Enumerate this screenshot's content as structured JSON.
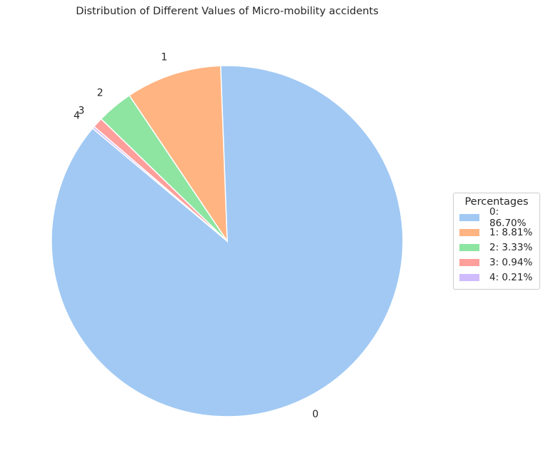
{
  "chart_data": {
    "type": "pie",
    "title": "Distribution of Different Values of Micro-mobility accidents",
    "categories": [
      "0",
      "1",
      "2",
      "3",
      "4"
    ],
    "values": [
      86.7,
      8.81,
      3.33,
      0.94,
      0.21
    ],
    "colors": [
      "#a1c9f4",
      "#ffb482",
      "#8de5a1",
      "#ff9f9b",
      "#d0bbff"
    ],
    "start_angle_deg": 140,
    "direction": "counterclockwise",
    "legend": {
      "title": "Percentages",
      "placement": "right",
      "entries": [
        "0: 86.70%",
        "1: 8.81%",
        "2: 3.33%",
        "3: 0.94%",
        "4: 0.21%"
      ]
    }
  }
}
